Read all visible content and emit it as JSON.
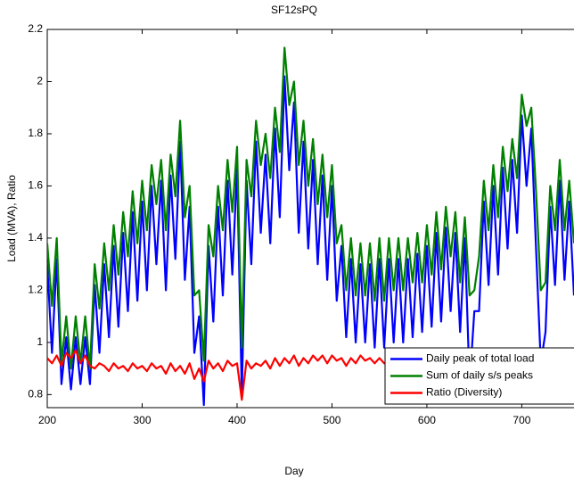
{
  "chart_data": {
    "type": "line",
    "title": "SF12sPQ",
    "xlabel": "Day",
    "ylabel": "Load (MVA), Ratio",
    "xlim": [
      200,
      755
    ],
    "ylim": [
      0.75,
      2.2
    ],
    "xticks": [
      200,
      300,
      400,
      500,
      600,
      700
    ],
    "yticks": [
      0.8,
      1,
      1.2,
      1.4,
      1.6,
      1.8,
      2,
      2.2
    ],
    "grid": false,
    "legend": "lower right",
    "x": [
      200,
      205,
      210,
      215,
      220,
      225,
      230,
      235,
      240,
      245,
      250,
      255,
      260,
      265,
      270,
      275,
      280,
      285,
      290,
      295,
      300,
      305,
      310,
      315,
      320,
      325,
      330,
      335,
      340,
      345,
      350,
      355,
      360,
      365,
      370,
      375,
      380,
      385,
      390,
      395,
      400,
      405,
      410,
      415,
      420,
      425,
      430,
      435,
      440,
      445,
      450,
      455,
      460,
      465,
      470,
      475,
      480,
      485,
      490,
      495,
      500,
      505,
      510,
      515,
      520,
      525,
      530,
      535,
      540,
      545,
      550,
      555,
      560,
      565,
      570,
      575,
      580,
      585,
      590,
      595,
      600,
      605,
      610,
      615,
      620,
      625,
      630,
      635,
      640,
      645,
      650,
      655,
      660,
      665,
      670,
      675,
      680,
      685,
      690,
      695,
      700,
      705,
      710,
      715,
      720,
      725,
      730,
      735,
      740,
      745,
      750,
      755
    ],
    "series": [
      {
        "name": "Daily peak of total load",
        "color": "#0000ff",
        "values": [
          1.3,
          0.96,
          1.32,
          0.84,
          1.02,
          0.82,
          1.02,
          0.84,
          1.02,
          0.84,
          1.22,
          0.96,
          1.3,
          1.02,
          1.37,
          1.06,
          1.42,
          1.12,
          1.5,
          1.16,
          1.54,
          1.2,
          1.6,
          1.3,
          1.62,
          1.2,
          1.64,
          1.32,
          1.77,
          1.24,
          1.52,
          0.96,
          1.1,
          0.76,
          1.37,
          1.08,
          1.52,
          1.18,
          1.62,
          1.26,
          1.67,
          0.8,
          1.62,
          1.3,
          1.77,
          1.42,
          1.72,
          1.38,
          1.82,
          1.48,
          2.02,
          1.66,
          1.92,
          1.42,
          1.77,
          1.36,
          1.7,
          1.3,
          1.64,
          1.24,
          1.6,
          1.16,
          1.37,
          1.02,
          1.32,
          1.0,
          1.3,
          1.0,
          1.3,
          0.98,
          1.32,
          0.98,
          1.32,
          1.0,
          1.32,
          1.0,
          1.32,
          1.02,
          1.34,
          1.04,
          1.37,
          1.06,
          1.42,
          1.08,
          1.44,
          1.12,
          1.42,
          1.04,
          1.4,
          0.84,
          1.12,
          1.12,
          1.54,
          1.22,
          1.6,
          1.26,
          1.67,
          1.36,
          1.7,
          1.42,
          1.87,
          1.6,
          1.82,
          1.36,
          0.92,
          1.04,
          1.52,
          1.22,
          1.62,
          1.24,
          1.54,
          1.18
        ]
      },
      {
        "name": "Sum of daily s/s peaks",
        "color": "#008000",
        "values": [
          1.38,
          1.14,
          1.4,
          0.92,
          1.1,
          0.9,
          1.1,
          0.92,
          1.1,
          0.9,
          1.3,
          1.13,
          1.38,
          1.2,
          1.45,
          1.26,
          1.5,
          1.33,
          1.58,
          1.38,
          1.62,
          1.43,
          1.68,
          1.53,
          1.7,
          1.43,
          1.72,
          1.56,
          1.85,
          1.48,
          1.6,
          1.18,
          1.2,
          0.93,
          1.45,
          1.33,
          1.6,
          1.43,
          1.7,
          1.5,
          1.75,
          0.98,
          1.7,
          1.56,
          1.85,
          1.68,
          1.8,
          1.63,
          1.9,
          1.73,
          2.13,
          1.91,
          2.0,
          1.68,
          1.85,
          1.6,
          1.78,
          1.53,
          1.72,
          1.48,
          1.68,
          1.38,
          1.45,
          1.2,
          1.4,
          1.18,
          1.38,
          1.18,
          1.38,
          1.16,
          1.4,
          1.16,
          1.4,
          1.2,
          1.4,
          1.2,
          1.4,
          1.23,
          1.42,
          1.23,
          1.45,
          1.26,
          1.5,
          1.28,
          1.52,
          1.33,
          1.5,
          1.23,
          1.48,
          1.18,
          1.2,
          1.33,
          1.62,
          1.43,
          1.68,
          1.48,
          1.75,
          1.58,
          1.78,
          1.63,
          1.95,
          1.83,
          1.9,
          1.58,
          1.2,
          1.23,
          1.6,
          1.43,
          1.7,
          1.43,
          1.62,
          1.38
        ]
      },
      {
        "name": "Ratio (Diversity)",
        "color": "#ff0000",
        "values": [
          0.94,
          0.92,
          0.95,
          0.91,
          0.96,
          0.94,
          0.97,
          0.92,
          0.95,
          0.91,
          0.9,
          0.92,
          0.91,
          0.89,
          0.92,
          0.9,
          0.91,
          0.89,
          0.92,
          0.9,
          0.91,
          0.89,
          0.92,
          0.9,
          0.91,
          0.88,
          0.92,
          0.89,
          0.91,
          0.88,
          0.92,
          0.86,
          0.9,
          0.85,
          0.93,
          0.9,
          0.92,
          0.89,
          0.93,
          0.91,
          0.92,
          0.78,
          0.93,
          0.9,
          0.92,
          0.91,
          0.93,
          0.9,
          0.94,
          0.91,
          0.94,
          0.92,
          0.95,
          0.91,
          0.94,
          0.92,
          0.95,
          0.93,
          0.95,
          0.92,
          0.95,
          0.93,
          0.94,
          0.91,
          0.94,
          0.92,
          0.95,
          0.93,
          0.94,
          0.92,
          0.94,
          0.92,
          0.93,
          0.91,
          0.94,
          0.92,
          0.93,
          0.91,
          0.94,
          0.92,
          0.93,
          0.91,
          0.94,
          0.92,
          0.93,
          0.91,
          0.92,
          0.88,
          0.91,
          0.85,
          0.92,
          0.89,
          0.93,
          0.9,
          0.92,
          0.91,
          0.93,
          0.91,
          0.94,
          0.92,
          0.93,
          0.91,
          0.94,
          0.92,
          0.86,
          0.9,
          0.93,
          0.91,
          0.94,
          0.92,
          0.93,
          0.92
        ]
      }
    ]
  }
}
